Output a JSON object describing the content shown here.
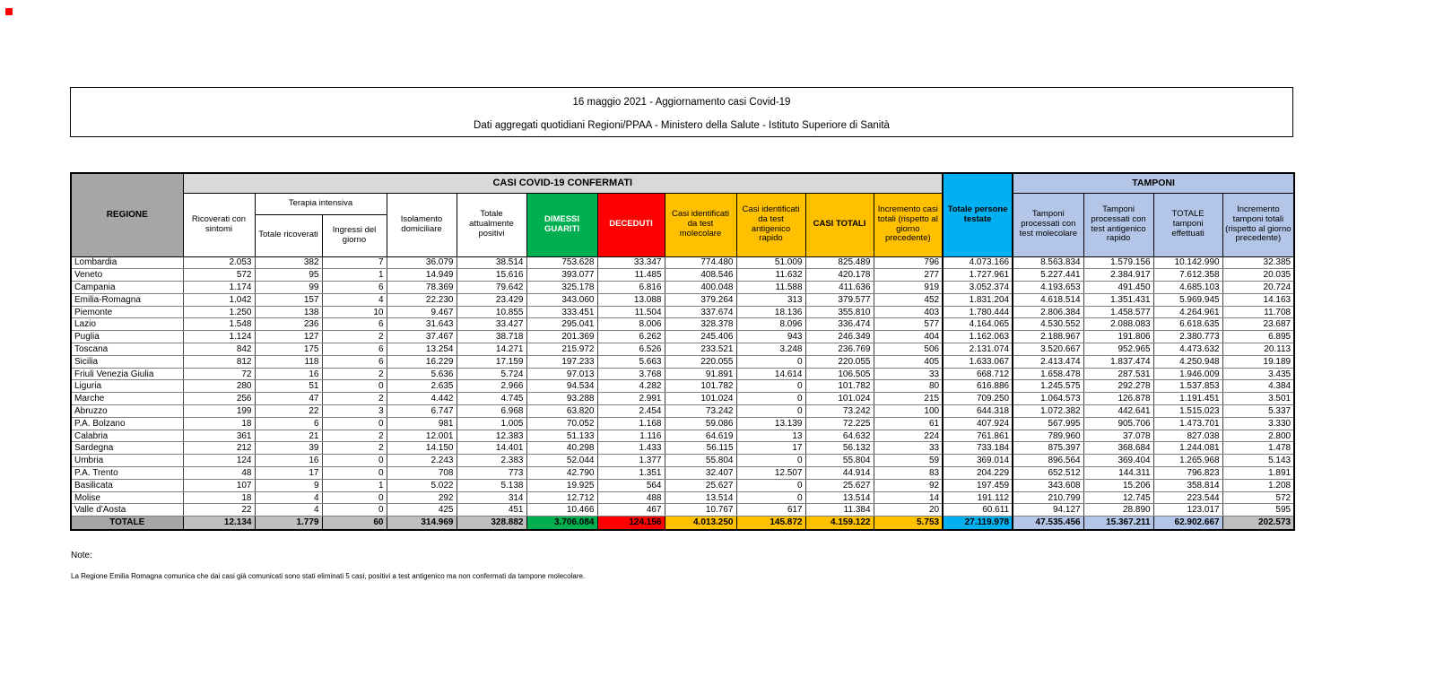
{
  "marker_color": "#FF0000",
  "title_box": {
    "line1": "16 maggio 2021 - Aggiornamento casi Covid-19",
    "line2": "Dati aggregati quotidiani Regioni/PPAA - Ministero della Salute - Istituto Superiore di Sanità"
  },
  "colors": {
    "header_gray": "#A6A6A6",
    "band_gray": "#D9D9D9",
    "green": "#00B050",
    "red": "#FF0000",
    "orange": "#FFC000",
    "cyan": "#00B0F0",
    "periwinkle": "#B4C6E7",
    "totale_row_gray": "#BFBFBF"
  },
  "table": {
    "group_headers": {
      "casi": "CASI COVID-19 CONFERMATI",
      "tamponi": "TAMPONI"
    },
    "headers": {
      "regione": "REGIONE",
      "ricoverati": "Ricoverati con sintomi",
      "terapia_intensiva": "Terapia intensiva",
      "totale_ricoverati": "Totale ricoverati",
      "ingressi_giorno": "Ingressi del giorno",
      "isolamento": "Isolamento domiciliare",
      "attualmente_positivi": "Totale attualmente positivi",
      "dimessi": "DIMESSI GUARITI",
      "deceduti": "DECEDUTI",
      "casi_molecolare": "Casi identificati da test molecolare",
      "casi_antigenico": "Casi identificati da test antigenico rapido",
      "casi_totali": "CASI TOTALI",
      "incremento_casi": "Incremento casi totali (rispetto al giorno precedente)",
      "persone_testate": "Totale persone testate",
      "tamponi_molecolare": "Tamponi processati con test molecolare",
      "tamponi_antigenico": "Tamponi processati con test antigenico rapido",
      "totale_tamponi": "TOTALE tamponi effettuati",
      "incremento_tamponi": "Incremento tamponi totali (rispetto al giorno precedente)"
    },
    "rows": [
      {
        "regione": "Lombardia",
        "values": [
          "2.053",
          "382",
          "7",
          "36.079",
          "38.514",
          "753.628",
          "33.347",
          "774.480",
          "51.009",
          "825.489",
          "796",
          "4.073.166",
          "8.563.834",
          "1.579.156",
          "10.142.990",
          "32.385"
        ]
      },
      {
        "regione": "Veneto",
        "values": [
          "572",
          "95",
          "1",
          "14.949",
          "15.616",
          "393.077",
          "11.485",
          "408.546",
          "11.632",
          "420.178",
          "277",
          "1.727.961",
          "5.227.441",
          "2.384.917",
          "7.612.358",
          "20.035"
        ]
      },
      {
        "regione": "Campania",
        "values": [
          "1.174",
          "99",
          "6",
          "78.369",
          "79.642",
          "325.178",
          "6.816",
          "400.048",
          "11.588",
          "411.636",
          "919",
          "3.052.374",
          "4.193.653",
          "491.450",
          "4.685.103",
          "20.724"
        ]
      },
      {
        "regione": "Emilia-Romagna",
        "values": [
          "1.042",
          "157",
          "4",
          "22.230",
          "23.429",
          "343.060",
          "13.088",
          "379.264",
          "313",
          "379.577",
          "452",
          "1.831.204",
          "4.618.514",
          "1.351.431",
          "5.969.945",
          "14.163"
        ]
      },
      {
        "regione": "Piemonte",
        "values": [
          "1.250",
          "138",
          "10",
          "9.467",
          "10.855",
          "333.451",
          "11.504",
          "337.674",
          "18.136",
          "355.810",
          "403",
          "1.780.444",
          "2.806.384",
          "1.458.577",
          "4.264.961",
          "11.708"
        ]
      },
      {
        "regione": "Lazio",
        "values": [
          "1.548",
          "236",
          "6",
          "31.643",
          "33.427",
          "295.041",
          "8.006",
          "328.378",
          "8.096",
          "336.474",
          "577",
          "4.164.065",
          "4.530.552",
          "2.088.083",
          "6.618.635",
          "23.687"
        ]
      },
      {
        "regione": "Puglia",
        "values": [
          "1.124",
          "127",
          "2",
          "37.467",
          "38.718",
          "201.369",
          "6.262",
          "245.406",
          "943",
          "246.349",
          "404",
          "1.162.063",
          "2.188.967",
          "191.806",
          "2.380.773",
          "6.895"
        ]
      },
      {
        "regione": "Toscana",
        "values": [
          "842",
          "175",
          "6",
          "13.254",
          "14.271",
          "215.972",
          "6.526",
          "233.521",
          "3.248",
          "236.769",
          "506",
          "2.131.074",
          "3.520.667",
          "952.965",
          "4.473.632",
          "20.113"
        ]
      },
      {
        "regione": "Sicilia",
        "values": [
          "812",
          "118",
          "6",
          "16.229",
          "17.159",
          "197.233",
          "5.663",
          "220.055",
          "0",
          "220.055",
          "405",
          "1.633.067",
          "2.413.474",
          "1.837.474",
          "4.250.948",
          "19.189"
        ]
      },
      {
        "regione": "Friuli Venezia Giulia",
        "values": [
          "72",
          "16",
          "2",
          "5.636",
          "5.724",
          "97.013",
          "3.768",
          "91.891",
          "14.614",
          "106.505",
          "33",
          "668.712",
          "1.658.478",
          "287.531",
          "1.946.009",
          "3.435"
        ]
      },
      {
        "regione": "Liguria",
        "values": [
          "280",
          "51",
          "0",
          "2.635",
          "2.966",
          "94.534",
          "4.282",
          "101.782",
          "0",
          "101.782",
          "80",
          "616.886",
          "1.245.575",
          "292.278",
          "1.537.853",
          "4.384"
        ]
      },
      {
        "regione": "Marche",
        "values": [
          "256",
          "47",
          "2",
          "4.442",
          "4.745",
          "93.288",
          "2.991",
          "101.024",
          "0",
          "101.024",
          "215",
          "709.250",
          "1.064.573",
          "126.878",
          "1.191.451",
          "3.501"
        ]
      },
      {
        "regione": "Abruzzo",
        "values": [
          "199",
          "22",
          "3",
          "6.747",
          "6.968",
          "63.820",
          "2.454",
          "73.242",
          "0",
          "73.242",
          "100",
          "644.318",
          "1.072.382",
          "442.641",
          "1.515.023",
          "5.337"
        ]
      },
      {
        "regione": "P.A. Bolzano",
        "values": [
          "18",
          "6",
          "0",
          "981",
          "1.005",
          "70.052",
          "1.168",
          "59.086",
          "13.139",
          "72.225",
          "61",
          "407.924",
          "567.995",
          "905.706",
          "1.473.701",
          "3.330"
        ]
      },
      {
        "regione": "Calabria",
        "values": [
          "361",
          "21",
          "2",
          "12.001",
          "12.383",
          "51.133",
          "1.116",
          "64.619",
          "13",
          "64.632",
          "224",
          "761.861",
          "789.960",
          "37.078",
          "827.038",
          "2.800"
        ]
      },
      {
        "regione": "Sardegna",
        "values": [
          "212",
          "39",
          "2",
          "14.150",
          "14.401",
          "40.298",
          "1.433",
          "56.115",
          "17",
          "56.132",
          "33",
          "733.184",
          "875.397",
          "368.684",
          "1.244.081",
          "1.478"
        ]
      },
      {
        "regione": "Umbria",
        "values": [
          "124",
          "16",
          "0",
          "2.243",
          "2.383",
          "52.044",
          "1.377",
          "55.804",
          "0",
          "55.804",
          "59",
          "369.014",
          "896.564",
          "369.404",
          "1.265.968",
          "5.143"
        ]
      },
      {
        "regione": "P.A. Trento",
        "values": [
          "48",
          "17",
          "0",
          "708",
          "773",
          "42.790",
          "1.351",
          "32.407",
          "12.507",
          "44.914",
          "83",
          "204.229",
          "652.512",
          "144.311",
          "796.823",
          "1.891"
        ]
      },
      {
        "regione": "Basilicata",
        "values": [
          "107",
          "9",
          "1",
          "5.022",
          "5.138",
          "19.925",
          "564",
          "25.627",
          "0",
          "25.627",
          "92",
          "197.459",
          "343.608",
          "15.206",
          "358.814",
          "1.208"
        ]
      },
      {
        "regione": "Molise",
        "values": [
          "18",
          "4",
          "0",
          "292",
          "314",
          "12.712",
          "488",
          "13.514",
          "0",
          "13.514",
          "14",
          "191.112",
          "210.799",
          "12.745",
          "223.544",
          "572"
        ]
      },
      {
        "regione": "Valle d'Aosta",
        "values": [
          "22",
          "4",
          "0",
          "425",
          "451",
          "10.466",
          "467",
          "10.767",
          "617",
          "11.384",
          "20",
          "60.611",
          "94.127",
          "28.890",
          "123.017",
          "595"
        ]
      }
    ],
    "totale": {
      "label": "TOTALE",
      "values": [
        "12.134",
        "1.779",
        "60",
        "314.969",
        "328.882",
        "3.706.084",
        "124.156",
        "4.013.250",
        "145.872",
        "4.159.122",
        "5.753",
        "27.119.978",
        "47.535.456",
        "15.367.211",
        "62.902.667",
        "202.573"
      ]
    }
  },
  "notes": {
    "heading": "Note:",
    "line1": "La Regione Emilia Romagna comunica che dai casi già comunicati sono stati eliminati 5 casi, positivi a test antigenico ma non confermati da tampone molecolare."
  }
}
